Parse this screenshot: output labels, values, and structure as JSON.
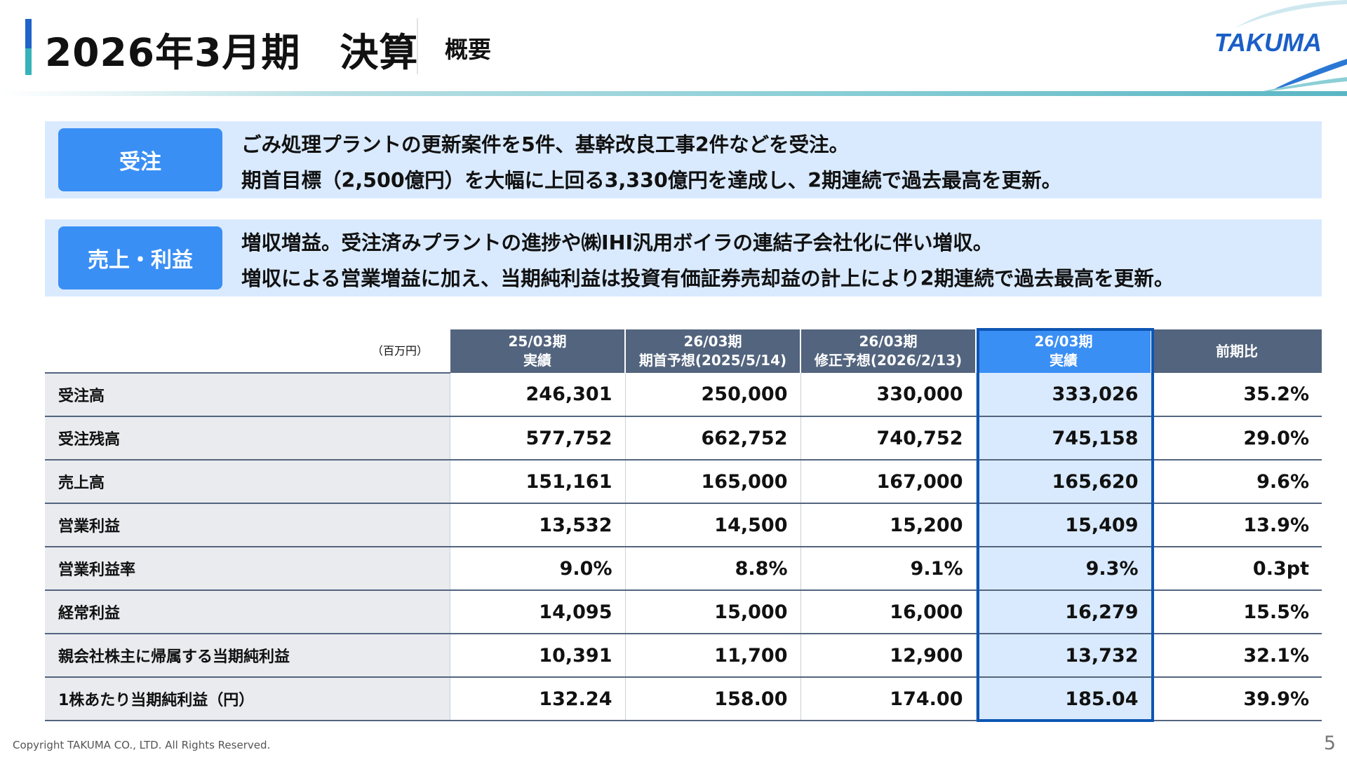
{
  "header": {
    "title": "2026年3月期　決算",
    "subtitle": "概要",
    "logo": "TAKUMA",
    "accent_colors": [
      "#1f64c8",
      "#36b3b8"
    ]
  },
  "summary": [
    {
      "tag": "受注",
      "lines": [
        "ごみ処理プラントの更新案件を5件、基幹改良工事2件などを受注。",
        "期首目標（2,500億円）を大幅に上回る3,330億円を達成し、2期連続で過去最高を更新。"
      ]
    },
    {
      "tag": "売上・利益",
      "lines": [
        "増収増益。受注済みプラントの進捗や㈱IHI汎用ボイラの連結子会社化に伴い増収。",
        "増収による営業増益に加え、当期純利益は投資有価証券売却益の計上により2期連続で過去最高を更新。"
      ]
    }
  ],
  "table": {
    "unit": "（百万円）",
    "columns": [
      {
        "line1": "25/03期",
        "line2": "実績"
      },
      {
        "line1": "26/03期",
        "line2": "期首予想(2025/5/14)"
      },
      {
        "line1": "26/03期",
        "line2": "修正予想(2026/2/13)"
      },
      {
        "line1": "26/03期",
        "line2": "実績"
      },
      {
        "line1": "前期比",
        "line2": ""
      }
    ],
    "highlight_column": 3,
    "rows": [
      {
        "label": "受注高",
        "values": [
          "246,301",
          "250,000",
          "330,000",
          "333,026",
          "35.2%"
        ]
      },
      {
        "label": "受注残高",
        "values": [
          "577,752",
          "662,752",
          "740,752",
          "745,158",
          "29.0%"
        ]
      },
      {
        "label": "売上高",
        "values": [
          "151,161",
          "165,000",
          "167,000",
          "165,620",
          "9.6%"
        ]
      },
      {
        "label": "営業利益",
        "values": [
          "13,532",
          "14,500",
          "15,200",
          "15,409",
          "13.9%"
        ]
      },
      {
        "label": "営業利益率",
        "values": [
          "9.0%",
          "8.8%",
          "9.1%",
          "9.3%",
          "0.3pt"
        ]
      },
      {
        "label": "経常利益",
        "values": [
          "14,095",
          "15,000",
          "16,000",
          "16,279",
          "15.5%"
        ]
      },
      {
        "label": "親会社株主に帰属する当期純利益",
        "values": [
          "10,391",
          "11,700",
          "12,900",
          "13,732",
          "32.1%"
        ]
      },
      {
        "label": "1株あたり当期純利益（円）",
        "values": [
          "132.24",
          "158.00",
          "174.00",
          "185.04",
          "39.9%"
        ]
      }
    ]
  },
  "footer": {
    "copyright": "Copyright  TAKUMA CO., LTD.  All Rights Reserved.",
    "page_number": "5"
  }
}
